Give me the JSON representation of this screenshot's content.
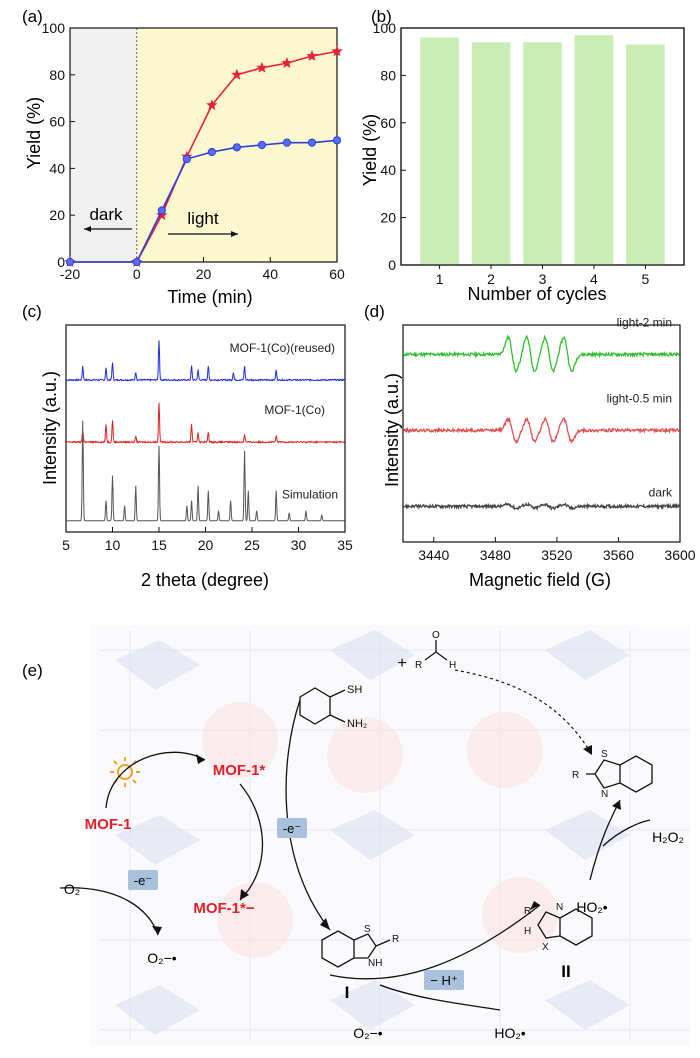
{
  "chart_data": [
    {
      "panel": "(a)",
      "type": "line",
      "xlabel": "Time (min)",
      "ylabel": "Yield (%)",
      "xlim": [
        -20,
        60
      ],
      "ylim": [
        0,
        100
      ],
      "xticks": [
        -20,
        0,
        20,
        40,
        60
      ],
      "yticks": [
        0,
        20,
        40,
        60,
        80,
        100
      ],
      "shaded_regions": [
        {
          "from": -20,
          "to": 0,
          "color": "#f0f0f0"
        },
        {
          "from": 0,
          "to": 60,
          "color": "#fbf7cf"
        }
      ],
      "annotations": [
        {
          "text": "dark",
          "direction": "left"
        },
        {
          "text": "light",
          "direction": "right"
        }
      ],
      "series": [
        {
          "marker": "star",
          "color": "#e8223a",
          "x": [
            -20,
            0,
            7.5,
            15,
            22.5,
            30,
            37.5,
            45,
            52.5,
            60
          ],
          "y": [
            0,
            0,
            20,
            45,
            67,
            80,
            83,
            85,
            88,
            90
          ]
        },
        {
          "marker": "circle",
          "color": "#2d3fd1",
          "x": [
            -20,
            0,
            7.5,
            15,
            22.5,
            30,
            37.5,
            45,
            52.5,
            60
          ],
          "y": [
            0,
            0,
            22,
            44,
            47,
            49,
            50,
            51,
            51,
            52
          ]
        }
      ]
    },
    {
      "panel": "(b)",
      "type": "bar",
      "xlabel": "Number of cycles",
      "ylabel": "Yield (%)",
      "categories": [
        "1",
        "2",
        "3",
        "4",
        "5"
      ],
      "values": [
        96,
        94,
        94,
        97,
        93
      ],
      "ylim": [
        0,
        100
      ],
      "yticks": [
        0,
        20,
        40,
        60,
        80,
        100
      ],
      "color": "#c8eeb6"
    },
    {
      "panel": "(c)",
      "type": "line",
      "xlabel": "2 theta (degree)",
      "ylabel": "Intensity (a.u.)",
      "xlim": [
        5,
        35
      ],
      "xticks": [
        5,
        10,
        15,
        20,
        25,
        30,
        35
      ],
      "series": [
        {
          "name": "MOF-1(Co)(reused)",
          "color": "#1f2fe0",
          "baseline": 0.72,
          "peaks": [
            [
              6.8,
              0.35
            ],
            [
              9.3,
              0.3
            ],
            [
              10.0,
              0.45
            ],
            [
              12.5,
              0.2
            ],
            [
              15.0,
              1.0
            ],
            [
              18.5,
              0.35
            ],
            [
              19.2,
              0.25
            ],
            [
              20.3,
              0.35
            ],
            [
              23.0,
              0.2
            ],
            [
              24.2,
              0.35
            ],
            [
              27.6,
              0.25
            ]
          ]
        },
        {
          "name": "MOF-1(Co)",
          "color": "#e02020",
          "baseline": 0.42,
          "peaks": [
            [
              6.8,
              0.3
            ],
            [
              9.3,
              0.45
            ],
            [
              10.0,
              0.55
            ],
            [
              12.5,
              0.15
            ],
            [
              15.0,
              1.0
            ],
            [
              18.5,
              0.45
            ],
            [
              19.2,
              0.25
            ],
            [
              20.3,
              0.25
            ],
            [
              24.2,
              0.2
            ],
            [
              27.6,
              0.15
            ]
          ]
        },
        {
          "name": "Simulation",
          "color": "#555555",
          "baseline": 0.04,
          "peaks": [
            [
              6.8,
              1.0
            ],
            [
              9.3,
              0.2
            ],
            [
              10.0,
              0.45
            ],
            [
              11.3,
              0.15
            ],
            [
              12.5,
              0.35
            ],
            [
              15.0,
              0.75
            ],
            [
              18.0,
              0.15
            ],
            [
              18.5,
              0.2
            ],
            [
              19.2,
              0.35
            ],
            [
              20.3,
              0.3
            ],
            [
              21.4,
              0.1
            ],
            [
              22.7,
              0.2
            ],
            [
              24.2,
              0.7
            ],
            [
              24.6,
              0.3
            ],
            [
              25.5,
              0.1
            ],
            [
              27.6,
              0.3
            ],
            [
              29.0,
              0.08
            ],
            [
              30.8,
              0.1
            ],
            [
              32.5,
              0.06
            ]
          ]
        }
      ]
    },
    {
      "panel": "(d)",
      "type": "line",
      "xlabel": "Magnetic field (G)",
      "ylabel": "Intensity (a.u.)",
      "xlim": [
        3420,
        3600
      ],
      "xticks": [
        3440,
        3480,
        3520,
        3560,
        3600
      ],
      "series": [
        {
          "name": "light-2 min",
          "color": "#2fbf2f",
          "baseline": 0.8,
          "amp": 1.0
        },
        {
          "name": "light-0.5 min",
          "color": "#e05050",
          "baseline": 0.45,
          "amp": 0.65
        },
        {
          "name": "dark",
          "color": "#444444",
          "baseline": 0.1,
          "amp": 0.12
        }
      ],
      "line_centers": [
        3491,
        3503,
        3515,
        3527
      ]
    }
  ],
  "panels": {
    "a": {
      "label": "(a)"
    },
    "b": {
      "label": "(b)"
    },
    "c": {
      "label": "(c)"
    },
    "d": {
      "label": "(d)"
    },
    "e": {
      "label": "(e)"
    }
  },
  "scheme": {
    "mof1": "MOF-1",
    "mof1_excited": "MOF-1*",
    "mof1_radical": "MOF-1*−",
    "electron_1": "-e⁻",
    "electron_2": "-e⁻",
    "o2": "O₂",
    "o2_radical": "O₂−•",
    "o2_radical_bottom": "O₂−•",
    "ho2_bottom": "HO₂•",
    "ho2_right": "HO₂•",
    "h2o2": "H₂O₂",
    "minus_h": "− H⁺",
    "intermediate_1": "I",
    "intermediate_2": "II",
    "plus": "+",
    "colors": {
      "red": "#e0202a",
      "box": "#a9c1dd",
      "sun": "#f4a020"
    }
  }
}
